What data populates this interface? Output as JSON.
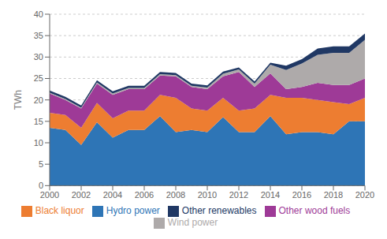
{
  "chart_data": {
    "type": "area",
    "stacked": true,
    "ylabel": "TWh",
    "x": [
      2000,
      2001,
      2002,
      2003,
      2004,
      2005,
      2006,
      2007,
      2008,
      2009,
      2010,
      2011,
      2012,
      2013,
      2014,
      2015,
      2016,
      2017,
      2018,
      2019,
      2020
    ],
    "series": [
      {
        "name": "Hydro power",
        "color": "#2e75b6",
        "values": [
          13.5,
          13.0,
          9.5,
          14.8,
          11.2,
          13.0,
          13.0,
          16.2,
          12.5,
          13.0,
          12.5,
          16.0,
          12.5,
          12.5,
          16.2,
          12.0,
          12.5,
          12.5,
          12.0,
          15.0,
          15.0
        ]
      },
      {
        "name": "Black liquor",
        "color": "#ed7d31",
        "values": [
          3.5,
          3.5,
          4.0,
          4.5,
          4.5,
          4.5,
          4.5,
          5.0,
          8.0,
          5.0,
          5.0,
          4.5,
          5.0,
          5.5,
          5.0,
          8.5,
          8.0,
          7.5,
          7.5,
          4.0,
          5.5
        ]
      },
      {
        "name": "Other wood fuels",
        "color": "#9e3a97",
        "values": [
          4.5,
          3.5,
          4.5,
          4.5,
          5.5,
          5.0,
          5.0,
          4.5,
          5.0,
          5.0,
          5.0,
          5.0,
          9.0,
          5.0,
          5.0,
          2.0,
          2.5,
          4.0,
          4.0,
          4.5,
          4.5
        ]
      },
      {
        "name": "Wind power",
        "color": "#aeaaaa",
        "values": [
          0.2,
          0.2,
          0.2,
          0.3,
          0.3,
          0.3,
          0.3,
          0.3,
          0.3,
          0.3,
          0.4,
          0.6,
          0.6,
          0.8,
          2.0,
          4.5,
          5.5,
          6.5,
          7.5,
          7.5,
          9.0
        ]
      },
      {
        "name": "Other renewables",
        "color": "#203864",
        "values": [
          0.5,
          0.5,
          0.5,
          0.5,
          0.5,
          0.5,
          0.5,
          0.5,
          0.5,
          0.5,
          0.5,
          0.5,
          0.5,
          0.5,
          0.5,
          1.0,
          1.0,
          1.5,
          1.5,
          1.5,
          1.5
        ]
      }
    ],
    "xlim": [
      2000,
      2020
    ],
    "ylim": [
      0,
      40
    ],
    "xticks": [
      2000,
      2002,
      2004,
      2006,
      2008,
      2010,
      2012,
      2014,
      2016,
      2018,
      2020
    ],
    "yticks": [
      0,
      5,
      10,
      15,
      20,
      25,
      30,
      35,
      40
    ],
    "grid": true,
    "legend": "bottom"
  }
}
